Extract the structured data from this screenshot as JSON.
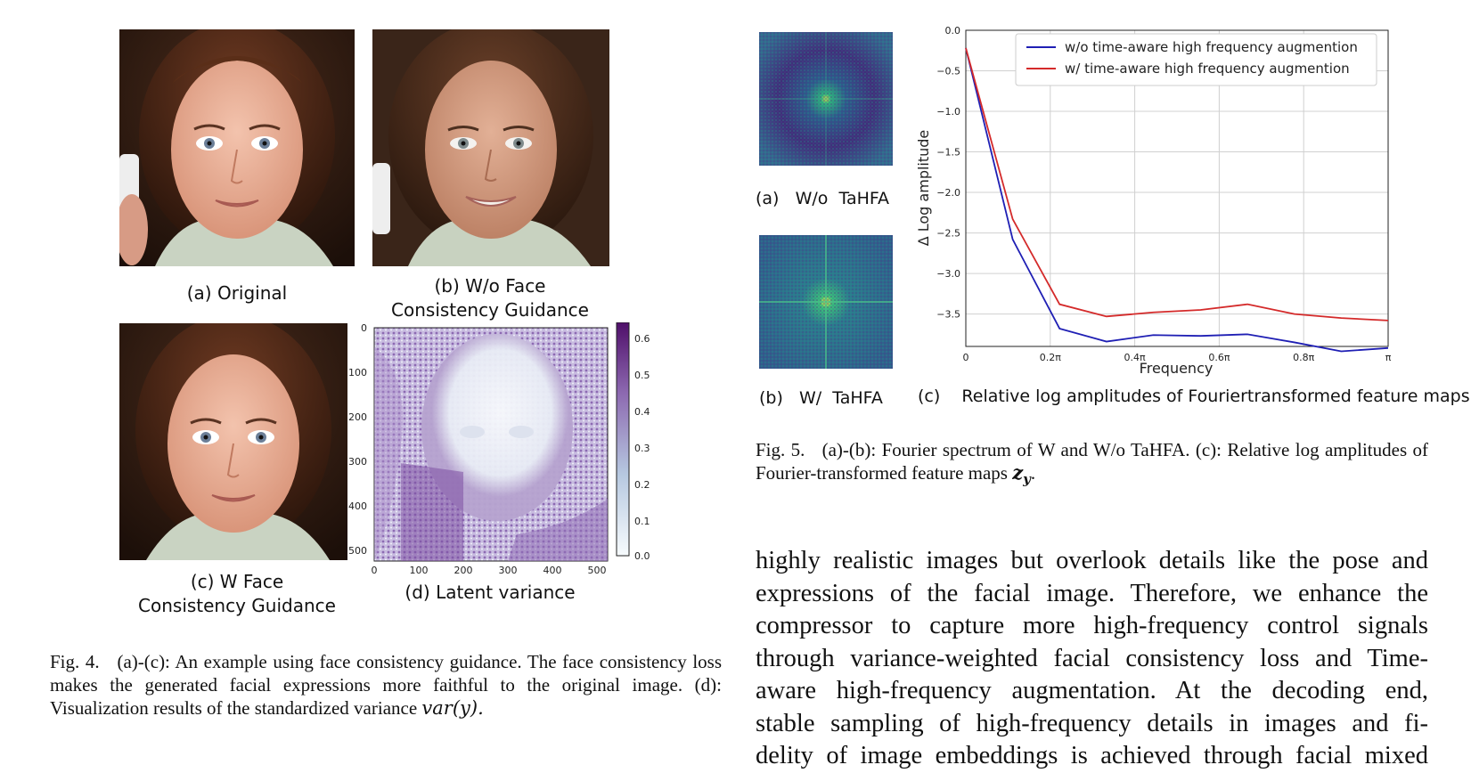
{
  "figure4": {
    "captions": {
      "a": "(a) Original",
      "b_line1": "(b) W/o Face",
      "b_line2": "Consistency Guidance",
      "c_line1": "(c) W Face",
      "c_line2": "Consistency Guidance",
      "d": "(d) Latent variance"
    },
    "heatmap_axes": {
      "y_ticks": [
        "0",
        "100",
        "200",
        "300",
        "400",
        "500"
      ],
      "x_ticks": [
        "0",
        "100",
        "200",
        "300",
        "400",
        "500"
      ],
      "colorbar_ticks": [
        "0.6",
        "0.5",
        "0.4",
        "0.3",
        "0.2",
        "0.1",
        "0.0"
      ]
    },
    "caption_label": "Fig. 4.",
    "caption_text": "(a)-(c): An example using face consistency guidance. The face consistency loss makes the generated facial expressions more faithful to the original image. (d): Visualization results of the standardized variance",
    "caption_math": "var(y).",
    "colors": {
      "heatmap_high": "#5b1a7a",
      "heatmap_mid": "#8e6bb0",
      "heatmap_low": "#f3f6fb"
    }
  },
  "figure5": {
    "spectrum_a_caption": "(a)   W/o  TaHFA",
    "spectrum_b_caption": "(b)   W/  TaHFA",
    "plot_caption": "(c)    Relative log amplitudes of Fouriertransformed feature maps",
    "caption_label": "Fig. 5.",
    "caption_text": "(a)-(b): Fourier spectrum of W and W/o TaHFA. (c): Relative log amplitudes of Fourier-transformed feature maps",
    "caption_math": "z",
    "caption_math_sub": "y",
    "caption_end": "."
  },
  "chart_data": {
    "type": "line",
    "title": "",
    "xlabel": "Frequency",
    "ylabel": "Δ Log amplitude",
    "x_tick_labels": [
      "0",
      "0.2π",
      "0.4π",
      "0.6π",
      "0.8π",
      "π"
    ],
    "y_tick_labels": [
      "0.0",
      "−0.5",
      "−1.0",
      "−1.5",
      "−2.0",
      "−2.5",
      "−3.0",
      "−3.5"
    ],
    "xlim": [
      0,
      1
    ],
    "ylim": [
      -3.9,
      0
    ],
    "y_ticks": [
      0,
      -0.5,
      -1.0,
      -1.5,
      -2.0,
      -2.5,
      -3.0,
      -3.5
    ],
    "x_ticks": [
      0,
      0.2,
      0.4,
      0.6,
      0.8,
      1.0
    ],
    "grid": true,
    "legend_position": "top-right",
    "x": [
      0,
      0.111,
      0.222,
      0.333,
      0.444,
      0.556,
      0.667,
      0.778,
      0.889,
      1.0
    ],
    "series": [
      {
        "name": "w/o time-aware high frequency augmention",
        "color": "#1f1fb4",
        "values": [
          -0.22,
          -2.58,
          -3.68,
          -3.84,
          -3.76,
          -3.77,
          -3.75,
          -3.85,
          -3.96,
          -3.92
        ]
      },
      {
        "name": "w/ time-aware high frequency augmention",
        "color": "#d42a2a",
        "values": [
          -0.22,
          -2.33,
          -3.38,
          -3.53,
          -3.48,
          -3.45,
          -3.38,
          -3.5,
          -3.55,
          -3.58
        ]
      }
    ]
  },
  "body_text_lines": [
    "highly realistic images but overlook details like the pose and",
    "expressions of the facial image. Therefore, we enhance the",
    "compressor to capture more high-frequency control signals",
    "through variance-weighted facial consistency loss and Time-",
    "aware high-frequency augmentation. At the decoding end,",
    "stable sampling of high-frequency details in images and fi-",
    "delity of image embeddings is achieved through facial mixed"
  ]
}
